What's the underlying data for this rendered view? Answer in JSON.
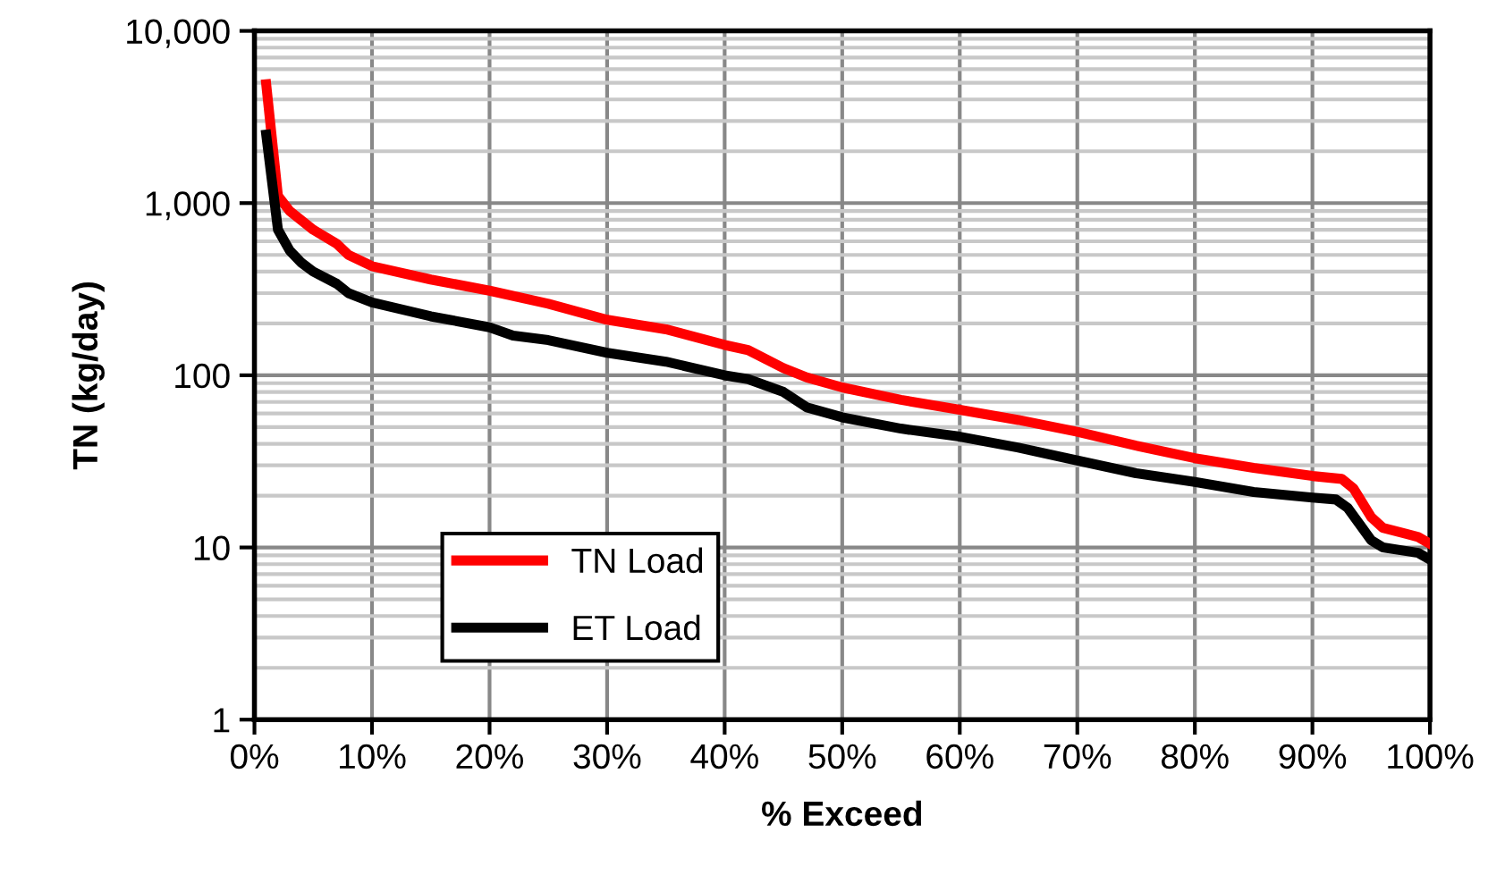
{
  "chart_data": {
    "type": "line",
    "xlabel": "% Exceed",
    "ylabel": "TN (kg/day)",
    "log": "y",
    "grid": true,
    "legend": "bottom left",
    "line_style": "solid",
    "marker": "none",
    "xlim": [
      0,
      100
    ],
    "xticks": [
      {
        "value": 0,
        "label": "0%"
      },
      {
        "value": 10,
        "label": "10%"
      },
      {
        "value": 20,
        "label": "20%"
      },
      {
        "value": 30,
        "label": "30%"
      },
      {
        "value": 40,
        "label": "40%"
      },
      {
        "value": 50,
        "label": "50%"
      },
      {
        "value": 60,
        "label": "60%"
      },
      {
        "value": 70,
        "label": "70%"
      },
      {
        "value": 80,
        "label": "80%"
      },
      {
        "value": 90,
        "label": "90%"
      },
      {
        "value": 100,
        "label": "100%"
      }
    ],
    "ylim": [
      1,
      10000
    ],
    "yticks": [
      1,
      10,
      100,
      {
        "value": 1000,
        "label": "1,000"
      },
      {
        "value": 10000,
        "label": "10,000"
      }
    ],
    "series": [
      {
        "name": "TN Load",
        "color": "#ff0000",
        "x": [
          1,
          2,
          3,
          5,
          7,
          8,
          10,
          15,
          20,
          25,
          30,
          35,
          40,
          42,
          45,
          47,
          50,
          55,
          60,
          65,
          70,
          75,
          80,
          85,
          90,
          92.5,
          93.5,
          95,
          96,
          98,
          99,
          100
        ],
        "values": [
          4900,
          1100,
          900,
          700,
          580,
          500,
          430,
          360,
          310,
          260,
          210,
          185,
          150,
          140,
          110,
          97,
          85,
          72,
          63,
          55,
          47,
          39,
          33,
          29,
          26,
          25,
          22,
          15,
          13,
          12,
          11.5,
          10.5
        ]
      },
      {
        "name": "ET Load",
        "color": "#000000",
        "x": [
          1,
          2,
          3,
          4,
          5,
          7,
          8,
          10,
          15,
          20,
          22,
          25,
          30,
          35,
          40,
          42,
          45,
          47,
          50,
          55,
          60,
          65,
          70,
          75,
          80,
          85,
          90,
          92,
          93,
          95,
          96,
          99,
          100
        ],
        "values": [
          2500,
          700,
          530,
          450,
          400,
          340,
          300,
          265,
          220,
          190,
          170,
          160,
          135,
          120,
          100,
          95,
          80,
          65,
          57,
          49,
          44,
          38,
          32,
          27,
          24,
          21,
          19.5,
          19,
          17,
          11,
          10,
          9.3,
          8.5
        ]
      }
    ]
  }
}
